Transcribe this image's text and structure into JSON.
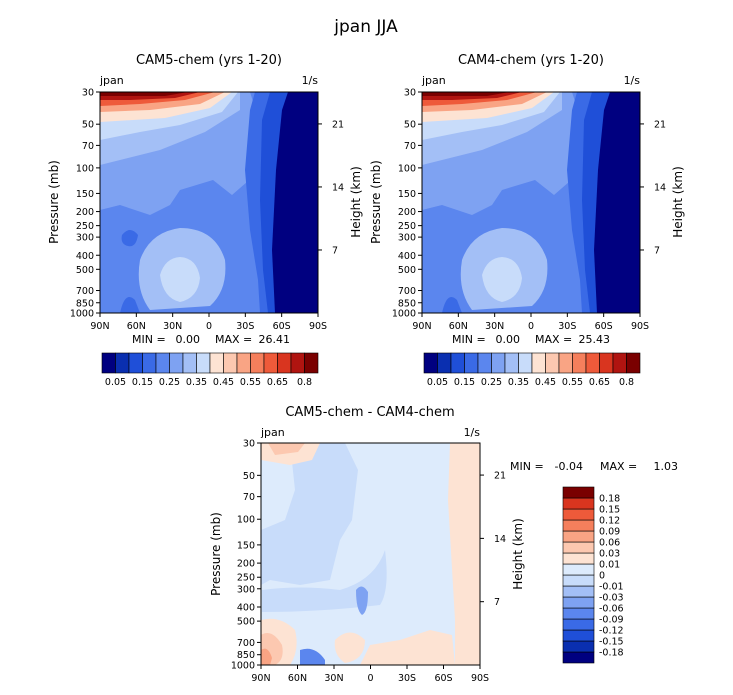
{
  "title": "jpan JJA",
  "colors": {
    "cb_main": [
      "#000080",
      "#0a2fb0",
      "#1f4fd8",
      "#3a6ae6",
      "#5b86ee",
      "#7ea2f2",
      "#a3bff6",
      "#c8dcfa",
      "#fde3d3",
      "#fcc8b0",
      "#f9a484",
      "#f57f5c",
      "#ee5a3a",
      "#d9351f",
      "#b01410",
      "#7a0000"
    ],
    "cb_diff": [
      "#000080",
      "#0a2fb0",
      "#1f4fd8",
      "#3a6ae6",
      "#5b86ee",
      "#7ea2f2",
      "#a3bff6",
      "#c8dcfa",
      "#ddebfc",
      "#fde3d3",
      "#fcc8b0",
      "#f9a484",
      "#f57f5c",
      "#ee5a3a",
      "#d9351f",
      "#7a0000"
    ]
  },
  "chart_data": [
    {
      "type": "heatmap",
      "title": "CAM5-chem (yrs 1-20)",
      "left_label": "jpan",
      "right_label": "1/s",
      "xlabel": "",
      "ylabel": "Pressure (mb)",
      "ylabel_right": "Height (km)",
      "x_ticks": [
        "90N",
        "60N",
        "30N",
        "0",
        "30S",
        "60S",
        "90S"
      ],
      "y_ticks": [
        "30",
        "50",
        "70",
        "100",
        "150",
        "200",
        "250",
        "300",
        "400",
        "500",
        "700",
        "850",
        "1000"
      ],
      "y_ticks_right": [
        "21",
        "14",
        "7"
      ],
      "stats": {
        "min_label": "MIN =",
        "min": "0.00",
        "max_label": "MAX =",
        "max": "26.41"
      },
      "colorbar_labels": [
        "0.05",
        "0.15",
        "0.25",
        "0.35",
        "0.45",
        "0.55",
        "0.65",
        "0.8"
      ]
    },
    {
      "type": "heatmap",
      "title": "CAM4-chem (yrs 1-20)",
      "left_label": "jpan",
      "right_label": "1/s",
      "xlabel": "",
      "ylabel": "Pressure (mb)",
      "ylabel_right": "Height (km)",
      "x_ticks": [
        "90N",
        "60N",
        "30N",
        "0",
        "30S",
        "60S",
        "90S"
      ],
      "y_ticks": [
        "30",
        "50",
        "70",
        "100",
        "150",
        "200",
        "250",
        "300",
        "400",
        "500",
        "700",
        "850",
        "1000"
      ],
      "y_ticks_right": [
        "21",
        "14",
        "7"
      ],
      "stats": {
        "min_label": "MIN =",
        "min": "0.00",
        "max_label": "MAX =",
        "max": "25.43"
      },
      "colorbar_labels": [
        "0.05",
        "0.15",
        "0.25",
        "0.35",
        "0.45",
        "0.55",
        "0.65",
        "0.8"
      ]
    },
    {
      "type": "heatmap",
      "title": "CAM5-chem - CAM4-chem",
      "left_label": "jpan",
      "right_label": "1/s",
      "xlabel": "",
      "ylabel": "Pressure (mb)",
      "ylabel_right": "Height (km)",
      "x_ticks": [
        "90N",
        "60N",
        "30N",
        "0",
        "30S",
        "60S",
        "90S"
      ],
      "y_ticks": [
        "30",
        "50",
        "70",
        "100",
        "150",
        "200",
        "250",
        "300",
        "400",
        "500",
        "700",
        "850",
        "1000"
      ],
      "y_ticks_right": [
        "21",
        "14",
        "7"
      ],
      "stats": {
        "min_label": "MIN =",
        "min": "-0.04",
        "max_label": "MAX =",
        "max": "1.03"
      },
      "colorbar_labels": [
        "0.18",
        "0.15",
        "0.12",
        "0.09",
        "0.06",
        "0.03",
        "0.01",
        "0",
        "-0.01",
        "-0.03",
        "-0.06",
        "-0.09",
        "-0.12",
        "-0.15",
        "-0.18"
      ]
    }
  ]
}
